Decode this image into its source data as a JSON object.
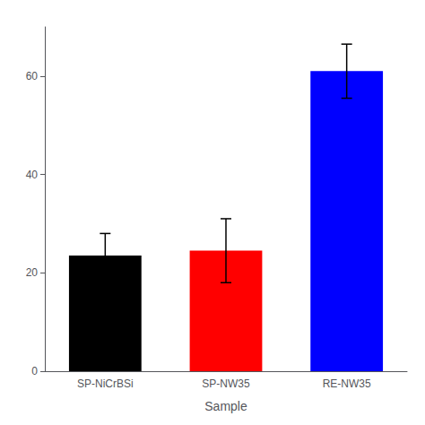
{
  "chart_data": {
    "type": "bar",
    "xlabel": "Sample",
    "categories": [
      "SP-NiCrBSi",
      "SP-NW35",
      "RE-NW35"
    ],
    "values": [
      23.5,
      24.5,
      61.0
    ],
    "errors": [
      4.5,
      6.5,
      5.5
    ],
    "colors": [
      "#000000",
      "#ff0000",
      "#0000ff"
    ],
    "ylim": [
      0,
      70
    ],
    "yticks": [
      0,
      20,
      40,
      60
    ],
    "grid": false
  }
}
